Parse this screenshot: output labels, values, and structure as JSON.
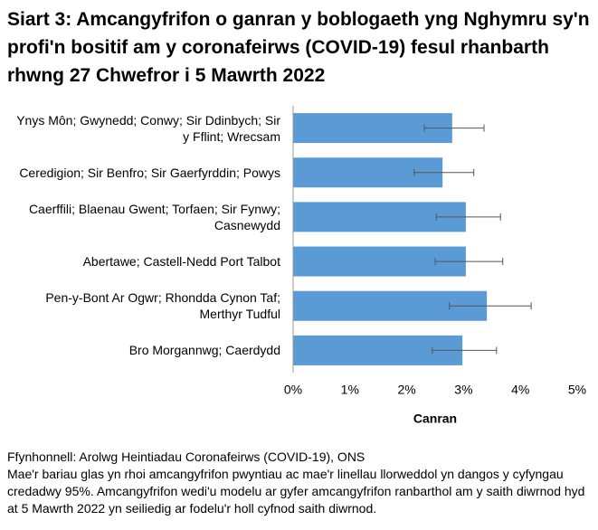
{
  "chart_data": {
    "type": "hbar",
    "title": "Siart 3: Amcangyfrifon o ganran y boblogaeth yng Nghymru sy'n profi'n bositif am y coronafeirws (COVID-19) fesul rhanbarth rhwng 27 Chwefror i 5 Mawrth 2022",
    "categories": [
      "Ynys Môn; Gwynedd; Conwy; Sir Ddinbych; Sir y Fflint; Wrecsam",
      "Ceredigion; Sir Benfro; Sir Gaerfyrddin; Powys",
      "Caerffili; Blaenau Gwent; Torfaen; Sir Fynwy; Casnewydd",
      "Abertawe; Castell-Nedd Port Talbot",
      "Pen-y-Bont Ar Ogwr; Rhondda Cynon Taf; Merthyr Tudful",
      "Bro Morgannwg; Caerdydd"
    ],
    "series": [
      {
        "color": "#5b9bd5",
        "values": [
          2.8,
          2.63,
          3.04,
          3.04,
          3.41,
          2.98
        ],
        "lower": [
          2.31,
          2.13,
          2.52,
          2.5,
          2.75,
          2.45
        ],
        "upper": [
          3.36,
          3.18,
          3.65,
          3.69,
          4.19,
          3.58
        ]
      }
    ],
    "xlabel": "Canran",
    "xlim": [
      0,
      5
    ],
    "xticks": [
      {
        "value": 0,
        "label": "0%"
      },
      {
        "value": 1,
        "label": "1%"
      },
      {
        "value": 2,
        "label": "2%"
      },
      {
        "value": 3,
        "label": "3%"
      },
      {
        "value": 4,
        "label": "4%"
      },
      {
        "value": 5,
        "label": "5%"
      }
    ],
    "grid": false,
    "notes": [
      "Ffynhonnell: Arolwg Heintiadau Coronafeirws (COVID-19), ONS",
      "Mae'r bariau glas yn rhoi amcangyfrifon pwyntiau ac mae'r linellau llorweddol yn dangos y cyfyngau credadwy 95%. Amcangyfrifon wedi'u modelu ar gyfer amcangyfrifon ranbarthol am y saith diwrnod hyd at 5 Mawrth 2022 yn seiliedig ar fodelu'r holl cyfnod saith diwrnod."
    ]
  }
}
